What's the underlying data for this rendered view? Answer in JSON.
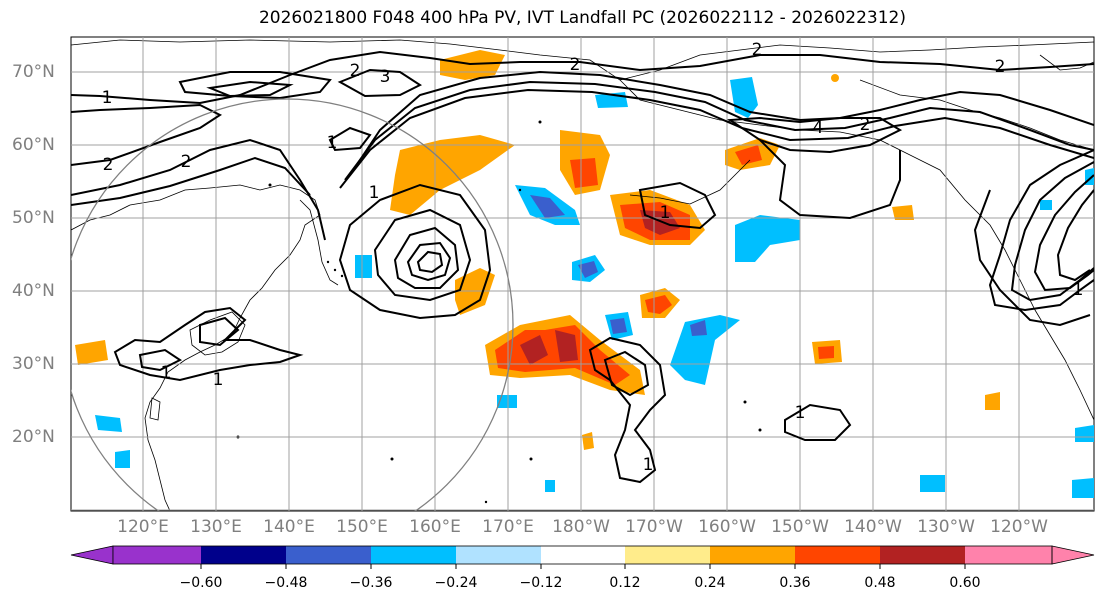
{
  "title": "2026021800 F048 400 hPa PV, IVT Landfall PC (2026022112 - 2026022312)",
  "latitude_labels": [
    "70°N",
    "60°N",
    "50°N",
    "40°N",
    "30°N",
    "20°N"
  ],
  "longitude_labels": [
    "120°E",
    "130°E",
    "140°E",
    "150°E",
    "160°E",
    "170°E",
    "180°W",
    "170°W",
    "160°W",
    "150°W",
    "140°W",
    "130°W",
    "120°W"
  ],
  "contour_labels": [
    "1",
    "2",
    "3",
    "2",
    "2",
    "2",
    "1",
    "2",
    "4",
    "2",
    "1",
    "1",
    "1",
    "1",
    "1",
    "1",
    "2",
    "1"
  ],
  "colorbar": {
    "tick_labels": [
      "−0.60",
      "−0.48",
      "−0.36",
      "−0.24",
      "−0.12",
      "0.12",
      "0.24",
      "0.36",
      "0.48",
      "0.60"
    ],
    "colors": [
      "#9932cc",
      "#00008b",
      "#3a5fcd",
      "#00bfff",
      "#b0e2ff",
      "#ffffff",
      "#ffec8b",
      "#ffa500",
      "#ff4500",
      "#b22222",
      "#ff82ab"
    ]
  },
  "colors": {
    "land_outline": "#000000",
    "grid": "#a0a0a0",
    "contour": "#000000",
    "circle": "#808080"
  }
}
